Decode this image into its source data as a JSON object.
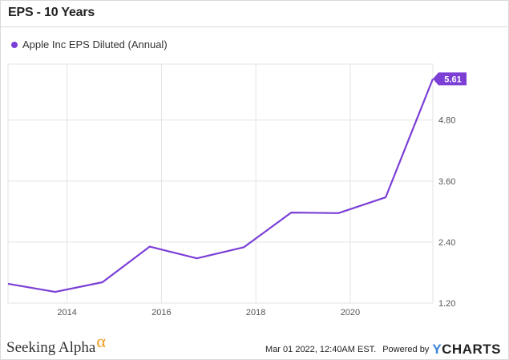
{
  "header": {
    "title": "EPS - 10 Years"
  },
  "legend": {
    "label": "Apple Inc EPS Diluted (Annual)"
  },
  "colors": {
    "series": "#7b3fd6",
    "grid": "#e3e3e3",
    "axis_text": "#555555"
  },
  "chart_data": {
    "type": "line",
    "title": "EPS - 10 Years",
    "xlabel": "",
    "ylabel": "",
    "x_ticks": [
      "2014",
      "2016",
      "2018",
      "2020"
    ],
    "y_ticks": [
      "1.20",
      "2.40",
      "3.60",
      "4.80"
    ],
    "ylim": [
      1.2,
      5.9
    ],
    "xlim": [
      2012.75,
      2021.75
    ],
    "grid": true,
    "legend_position": "top-left",
    "series": [
      {
        "name": "Apple Inc EPS Diluted (Annual)",
        "x": [
          2012.75,
          2013.75,
          2014.75,
          2015.75,
          2016.75,
          2017.75,
          2018.75,
          2019.75,
          2020.75,
          2021.75
        ],
        "values": [
          1.58,
          1.42,
          1.61,
          2.31,
          2.08,
          2.3,
          2.98,
          2.97,
          3.28,
          5.61
        ]
      }
    ],
    "last_value_label": "5.61"
  },
  "footer": {
    "logo_text": "Seeking Alpha",
    "logo_symbol": "α",
    "timestamp": "Mar 01 2022, 12:40AM EST.",
    "powered_by": "Powered by",
    "brand_y": "Y",
    "brand_rest": "CHARTS"
  }
}
